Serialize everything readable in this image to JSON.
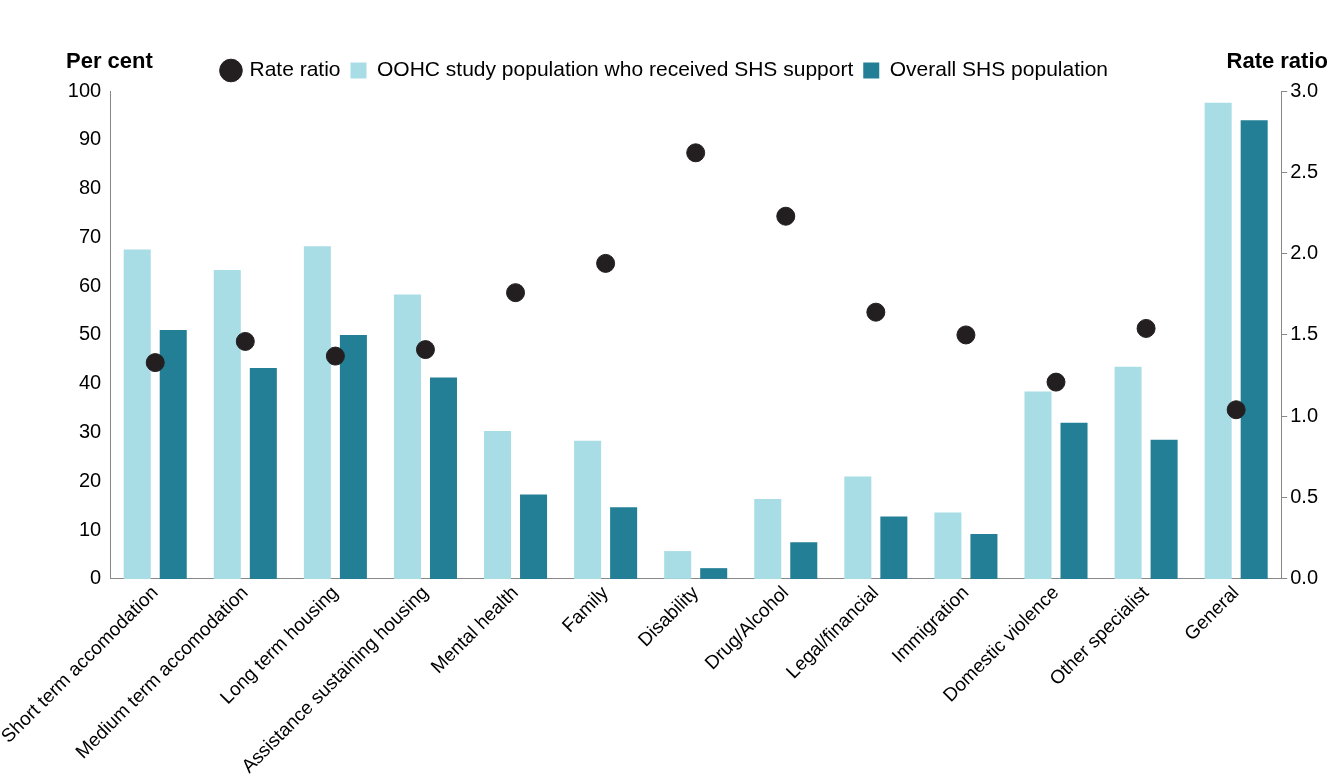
{
  "chart_data": {
    "type": "bar",
    "ylabel": "Per cent",
    "y2label": "Rate ratio",
    "categories": [
      "Short term accomodation",
      "Medium term accomodation",
      "Long term housing",
      "Assistance sustaining housing",
      "Mental health",
      "Family",
      "Disability",
      "Drug/Alcohol",
      "Legal/financial",
      "Immigration",
      "Domestic violence",
      "Other specialist",
      "General"
    ],
    "series": [
      {
        "name": "OOHC study population who received SHS support",
        "color": "#a8dde6",
        "values": [
          67.5,
          63.3,
          68.2,
          58.3,
          30.3,
          28.3,
          5.7,
          16.4,
          21,
          13.6,
          38.4,
          43.5,
          97.6
        ]
      },
      {
        "name": "Overall SHS population",
        "color": "#237f96",
        "values": [
          51,
          43.2,
          50,
          41.3,
          17.3,
          14.7,
          2.2,
          7.5,
          12.8,
          9.2,
          32,
          28.5,
          94
        ]
      },
      {
        "name": "Rate ratio",
        "type": "scatter",
        "axis": "y2",
        "color": "#231f20",
        "values": [
          1.33,
          1.46,
          1.37,
          1.41,
          1.76,
          1.94,
          2.62,
          2.23,
          1.64,
          1.5,
          1.21,
          1.54,
          1.04
        ]
      }
    ],
    "ylim": [
      0,
      100
    ],
    "yticks": [
      0,
      10,
      20,
      30,
      40,
      50,
      60,
      70,
      80,
      90,
      100
    ],
    "y2lim": [
      0,
      3
    ],
    "y2ticks": [
      {
        "value": 0,
        "label": "0.0"
      },
      {
        "value": 0.5,
        "label": "0.5"
      },
      {
        "value": 1,
        "label": "1.0"
      },
      {
        "value": 1.5,
        "label": "1.5"
      },
      {
        "value": 2,
        "label": "2.0"
      },
      {
        "value": 2.5,
        "label": "2.5"
      },
      {
        "value": 3,
        "label": "3.0"
      }
    ],
    "grid": false,
    "legend": "top",
    "marker": "circle"
  }
}
